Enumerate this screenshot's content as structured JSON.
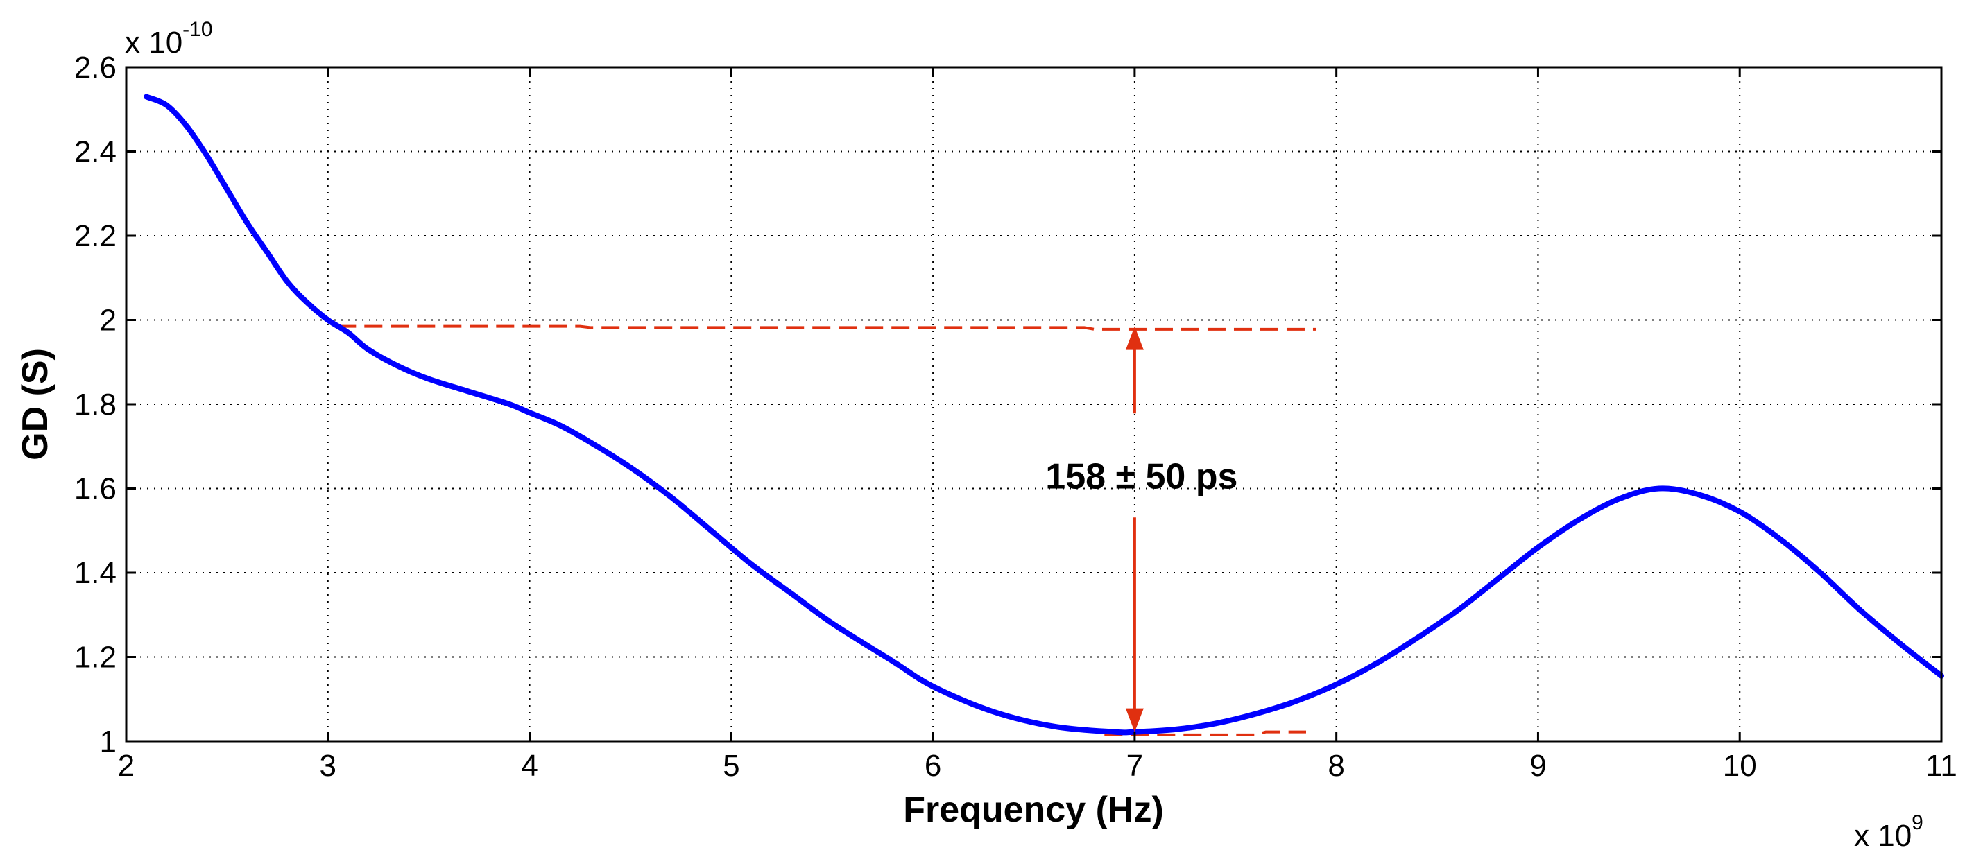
{
  "chart_data": {
    "type": "line",
    "xlabel": "Frequency (Hz)",
    "ylabel": "GD (S)",
    "x_multiplier": {
      "base": "x 10",
      "exp": "9"
    },
    "y_multiplier": {
      "base": "x 10",
      "exp": "-10"
    },
    "xlim": [
      2,
      11
    ],
    "ylim": [
      1.0,
      2.6
    ],
    "x_ticks": [
      2,
      3,
      4,
      5,
      6,
      7,
      8,
      9,
      10,
      11
    ],
    "x_tick_labels": [
      "2",
      "3",
      "4",
      "5",
      "6",
      "7",
      "8",
      "9",
      "10",
      "11"
    ],
    "y_ticks": [
      1.0,
      1.2,
      1.4,
      1.6,
      1.8,
      2.0,
      2.2,
      2.4,
      2.6
    ],
    "y_tick_labels": [
      "1",
      "1.2",
      "1.4",
      "1.6",
      "1.8",
      "2",
      "2.2",
      "2.4",
      "2.6"
    ],
    "grid": true,
    "series": [
      {
        "name": "GD",
        "color": "#0000ff",
        "x": [
          2.1,
          2.2,
          2.3,
          2.4,
          2.5,
          2.6,
          2.7,
          2.8,
          2.9,
          3.0,
          3.1,
          3.2,
          3.35,
          3.5,
          3.7,
          3.9,
          4.0,
          4.15,
          4.3,
          4.5,
          4.7,
          4.9,
          5.1,
          5.3,
          5.5,
          5.8,
          6.0,
          6.3,
          6.6,
          6.9,
          7.0,
          7.2,
          7.4,
          7.6,
          7.8,
          8.0,
          8.2,
          8.4,
          8.6,
          8.8,
          9.0,
          9.2,
          9.4,
          9.6,
          9.8,
          10.0,
          10.2,
          10.4,
          10.6,
          10.8,
          11.0
        ],
        "y": [
          2.53,
          2.51,
          2.46,
          2.39,
          2.31,
          2.23,
          2.16,
          2.09,
          2.04,
          2.0,
          1.97,
          1.93,
          1.89,
          1.86,
          1.83,
          1.8,
          1.78,
          1.75,
          1.71,
          1.65,
          1.58,
          1.5,
          1.42,
          1.35,
          1.28,
          1.19,
          1.13,
          1.07,
          1.035,
          1.022,
          1.022,
          1.028,
          1.042,
          1.065,
          1.095,
          1.135,
          1.185,
          1.245,
          1.31,
          1.385,
          1.46,
          1.525,
          1.575,
          1.6,
          1.585,
          1.545,
          1.48,
          1.4,
          1.31,
          1.23,
          1.155
        ]
      }
    ],
    "reference_lines": [
      {
        "name": "upper-ref",
        "color": "#e03010",
        "style": "dashed",
        "x": [
          3.05,
          4.25,
          4.3,
          6.75,
          6.8,
          7.9
        ],
        "y": [
          1.985,
          1.985,
          1.982,
          1.982,
          1.978,
          1.978
        ]
      },
      {
        "name": "lower-ref",
        "color": "#e03010",
        "style": "dashed",
        "x": [
          6.85,
          7.6,
          7.65,
          7.85
        ],
        "y": [
          1.015,
          1.015,
          1.022,
          1.022
        ]
      }
    ],
    "annotation": {
      "text": "158 ± 50 ps",
      "x": 7.0,
      "y_top": 1.985,
      "y_bottom": 1.022,
      "text_y": 1.63,
      "color": "#e03010"
    }
  }
}
